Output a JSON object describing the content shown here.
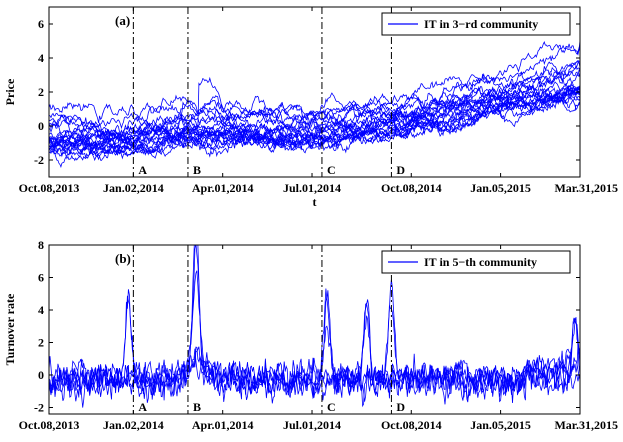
{
  "chart_data": [
    {
      "type": "line",
      "panel_label": "(a)",
      "ylabel": "Price",
      "xlabel": "t",
      "xlim": [
        0,
        535
      ],
      "ylim": [
        -3,
        7
      ],
      "yticks": [
        -2,
        0,
        2,
        4,
        6
      ],
      "x_tick_positions": [
        0,
        85,
        175,
        265,
        365,
        455,
        535
      ],
      "x_tick_labels": [
        "Oct.08,2013",
        "Jan.02,2014",
        "Apr.01,2014",
        "Jul.01,2014",
        "Oct.08,2014",
        "Jan.05,2015",
        "Mar.31,2015"
      ],
      "legend": {
        "label": "IT in 3−rd community",
        "placement": "top-right"
      },
      "markers": [
        {
          "label": "A",
          "x": 85
        },
        {
          "label": "B",
          "x": 140
        },
        {
          "label": "C",
          "x": 275
        },
        {
          "label": "D",
          "x": 345
        }
      ],
      "series_count": 22,
      "color": "#0000ff",
      "key_points_x": [
        0,
        85,
        140,
        275,
        345,
        535
      ],
      "key_points_y_mean": [
        -0.8,
        -0.9,
        -0.3,
        -0.5,
        0.1,
        2.3
      ],
      "spread_y": [
        1.0,
        0.8,
        1.0,
        0.8,
        0.7,
        1.3
      ]
    },
    {
      "type": "line",
      "panel_label": "(b)",
      "ylabel": "Turnover rate",
      "xlabel": "",
      "xlim": [
        0,
        535
      ],
      "ylim": [
        -2.4,
        8
      ],
      "yticks": [
        -2,
        0,
        2,
        4,
        6,
        8
      ],
      "x_tick_positions": [
        0,
        85,
        175,
        265,
        365,
        455,
        535
      ],
      "x_tick_labels": [
        "Oct.08,2013",
        "Jan.02,2014",
        "Apr.01,2014",
        "Jul.01,2014",
        "Oct.08,2014",
        "Jan.05,2015",
        "Mar.31,2015"
      ],
      "legend": {
        "label": "IT in 5−th community",
        "placement": "top-right"
      },
      "markers": [
        {
          "label": "A",
          "x": 85
        },
        {
          "label": "B",
          "x": 140
        },
        {
          "label": "C",
          "x": 275
        },
        {
          "label": "D",
          "x": 345
        }
      ],
      "series_count": 6,
      "color": "#0000ff",
      "peaks": [
        {
          "x": 80,
          "y": 4.9
        },
        {
          "x": 148,
          "y": 6.9
        },
        {
          "x": 280,
          "y": 5.5
        },
        {
          "x": 345,
          "y": 5.5
        },
        {
          "x": 320,
          "y": 4.5
        },
        {
          "x": 530,
          "y": 3.8
        }
      ]
    }
  ]
}
